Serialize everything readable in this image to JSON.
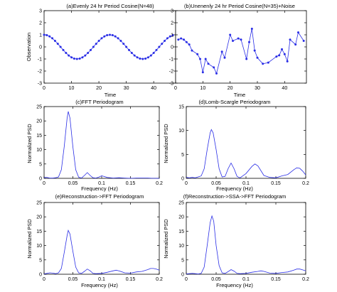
{
  "chart_data": [
    {
      "type": "line",
      "title": "(a)Evenly 24 hr Period Cosine(N=48)",
      "xlabel": "Time",
      "ylabel": "Observation",
      "xlim": [
        0,
        48
      ],
      "ylim": [
        -3,
        3
      ],
      "xticks": [
        "0",
        "10",
        "20",
        "30",
        "40"
      ],
      "yticks": [
        "-3",
        "-2",
        "-1",
        "0",
        "1",
        "2",
        "3"
      ],
      "markers": true,
      "series": [
        {
          "x": [
            0,
            1,
            2,
            3,
            4,
            5,
            6,
            7,
            8,
            9,
            10,
            11,
            12,
            13,
            14,
            15,
            16,
            17,
            18,
            19,
            20,
            21,
            22,
            23,
            24,
            25,
            26,
            27,
            28,
            29,
            30,
            31,
            32,
            33,
            34,
            35,
            36,
            37,
            38,
            39,
            40,
            41,
            42,
            43,
            44,
            45,
            46,
            47
          ],
          "y": [
            1.0,
            0.97,
            0.87,
            0.71,
            0.5,
            0.26,
            0.0,
            -0.26,
            -0.5,
            -0.71,
            -0.87,
            -0.97,
            -1.0,
            -0.97,
            -0.87,
            -0.71,
            -0.5,
            -0.26,
            0.0,
            0.26,
            0.5,
            0.71,
            0.87,
            0.97,
            1.0,
            0.97,
            0.87,
            0.71,
            0.5,
            0.26,
            0.0,
            -0.26,
            -0.5,
            -0.71,
            -0.87,
            -0.97,
            -1.0,
            -0.97,
            -0.87,
            -0.71,
            -0.5,
            -0.26,
            0.0,
            0.26,
            0.5,
            0.71,
            0.87,
            0.97
          ]
        }
      ]
    },
    {
      "type": "line",
      "title": "(b)Unenenly 24 hr Period Cosine(N=35)+Noise",
      "xlabel": "Time",
      "ylabel": "",
      "xlim": [
        0,
        48
      ],
      "ylim": [
        -3,
        3
      ],
      "xticks": [
        "0",
        "10",
        "20",
        "30",
        "40"
      ],
      "yticks": [
        "-3",
        "-2",
        "-1",
        "0",
        "1",
        "2",
        "3"
      ],
      "markers": true,
      "series": [
        {
          "x": [
            1,
            2,
            3,
            4,
            5,
            6,
            8,
            9,
            10,
            11,
            12,
            14,
            15,
            17,
            18,
            20,
            21,
            23,
            24,
            26,
            27,
            28,
            29,
            30,
            32,
            34,
            37,
            38,
            39,
            40,
            41,
            42,
            44,
            45,
            47
          ],
          "y": [
            0.6,
            0.7,
            0.6,
            0.4,
            0.2,
            -0.3,
            -0.6,
            -1.0,
            -2.1,
            -1.0,
            -1.4,
            -1.7,
            -2.2,
            -0.4,
            -0.9,
            1.0,
            0.5,
            0.7,
            0.6,
            -1.0,
            0.4,
            1.5,
            -0.3,
            -0.9,
            -1.4,
            -1.3,
            -0.8,
            -0.7,
            -0.2,
            -0.6,
            -1.2,
            0.6,
            0.2,
            1.2,
            0.5
          ]
        }
      ]
    },
    {
      "type": "line",
      "title": "(c)FFT Periodogram",
      "xlabel": "Frequency (Hz)",
      "ylabel": "Normalized PSD",
      "xlim": [
        0,
        0.2
      ],
      "ylim": [
        0,
        25
      ],
      "xticks": [
        "0",
        "0.05",
        "0.1",
        "0.15",
        "0.2"
      ],
      "yticks": [
        "0",
        "5",
        "10",
        "15",
        "20",
        "25"
      ],
      "markers": false,
      "series": [
        {
          "x": [
            0,
            0.005,
            0.01,
            0.015,
            0.02,
            0.025,
            0.03,
            0.035,
            0.04,
            0.042,
            0.045,
            0.05,
            0.055,
            0.06,
            0.065,
            0.07,
            0.075,
            0.08,
            0.085,
            0.09,
            0.095,
            0.1,
            0.11,
            0.12,
            0.13,
            0.14,
            0.15,
            0.16,
            0.17,
            0.18,
            0.19,
            0.2
          ],
          "y": [
            0.3,
            0.3,
            0.1,
            0.1,
            0.2,
            0.5,
            3.0,
            11.0,
            21.0,
            23.3,
            21.0,
            11.0,
            3.0,
            0.4,
            0.1,
            1.0,
            2.0,
            1.0,
            0.2,
            0.1,
            0.4,
            0.9,
            0.3,
            0.1,
            0.2,
            0.1,
            0.0,
            0.1,
            0.1,
            0.1,
            0.0,
            0.0
          ]
        }
      ]
    },
    {
      "type": "line",
      "title": "(d)Lomb-Scargle Periodogram",
      "xlabel": "Frequency (Hz)",
      "ylabel": "Normalized PSD",
      "xlim": [
        0,
        0.2
      ],
      "ylim": [
        0,
        15
      ],
      "xticks": [
        "0",
        "0.05",
        "0.1",
        "0.15",
        "0.2"
      ],
      "yticks": [
        "0",
        "5",
        "10",
        "15"
      ],
      "markers": false,
      "series": [
        {
          "x": [
            0,
            0.005,
            0.01,
            0.015,
            0.02,
            0.025,
            0.03,
            0.035,
            0.04,
            0.042,
            0.045,
            0.05,
            0.055,
            0.06,
            0.065,
            0.07,
            0.075,
            0.08,
            0.085,
            0.09,
            0.1,
            0.11,
            0.115,
            0.12,
            0.13,
            0.14,
            0.15,
            0.16,
            0.17,
            0.18,
            0.185,
            0.19,
            0.195,
            0.2
          ],
          "y": [
            0.2,
            0.1,
            0.2,
            0.1,
            0.3,
            0.5,
            2.0,
            6.0,
            9.5,
            10.2,
            9.5,
            6.0,
            2.0,
            0.3,
            0.4,
            2.0,
            3.2,
            2.0,
            0.4,
            0.1,
            1.0,
            2.5,
            3.0,
            2.6,
            0.6,
            0.2,
            0.1,
            0.5,
            0.8,
            1.8,
            2.2,
            2.1,
            1.5,
            0.7
          ]
        }
      ]
    },
    {
      "type": "line",
      "title": "(e)Reconstruction->FFT Periodogram",
      "xlabel": "Frequency (Hz)",
      "ylabel": "Normalized PSD",
      "xlim": [
        0,
        0.2
      ],
      "ylim": [
        0,
        25
      ],
      "xticks": [
        "0",
        "0.05",
        "0.1",
        "0.15",
        "0.2"
      ],
      "yticks": [
        "0",
        "5",
        "10",
        "15",
        "20",
        "25"
      ],
      "markers": false,
      "series": [
        {
          "x": [
            0,
            0.005,
            0.01,
            0.015,
            0.02,
            0.025,
            0.03,
            0.035,
            0.04,
            0.042,
            0.045,
            0.05,
            0.055,
            0.06,
            0.065,
            0.07,
            0.075,
            0.08,
            0.085,
            0.09,
            0.1,
            0.11,
            0.12,
            0.125,
            0.13,
            0.14,
            0.15,
            0.16,
            0.17,
            0.18,
            0.185,
            0.19,
            0.195,
            0.2
          ],
          "y": [
            0.1,
            0.3,
            0.5,
            0.4,
            0.2,
            0.5,
            2.0,
            7.5,
            13.5,
            15.3,
            14.0,
            8.0,
            2.5,
            0.5,
            0.3,
            1.0,
            1.8,
            1.2,
            0.3,
            0.2,
            0.3,
            0.7,
            1.2,
            1.4,
            1.2,
            0.5,
            0.4,
            0.8,
            1.0,
            1.6,
            2.0,
            2.0,
            1.8,
            1.4
          ]
        }
      ]
    },
    {
      "type": "line",
      "title": "(f)Reconstruction->SSA->FFT Periodogram",
      "xlabel": "Frequency (Hz)",
      "ylabel": "Normalized PSD",
      "xlim": [
        0,
        0.2
      ],
      "ylim": [
        0,
        25
      ],
      "xticks": [
        "0",
        "0.05",
        "0.1",
        "0.15",
        "0.2"
      ],
      "yticks": [
        "0",
        "5",
        "10",
        "15",
        "20",
        "25"
      ],
      "markers": false,
      "series": [
        {
          "x": [
            0,
            0.005,
            0.01,
            0.015,
            0.02,
            0.025,
            0.03,
            0.035,
            0.04,
            0.043,
            0.046,
            0.05,
            0.055,
            0.06,
            0.065,
            0.07,
            0.075,
            0.08,
            0.085,
            0.09,
            0.1,
            0.11,
            0.12,
            0.125,
            0.13,
            0.14,
            0.15,
            0.16,
            0.17,
            0.18,
            0.185,
            0.19,
            0.195,
            0.2
          ],
          "y": [
            0.1,
            0.2,
            0.3,
            0.2,
            0.1,
            0.3,
            2.5,
            10.0,
            18.0,
            20.3,
            18.5,
            10.0,
            3.0,
            0.5,
            0.3,
            0.9,
            1.6,
            1.1,
            0.3,
            0.2,
            0.3,
            0.7,
            1.0,
            1.2,
            1.0,
            0.4,
            0.3,
            0.6,
            0.8,
            1.4,
            1.8,
            1.8,
            1.5,
            1.2
          ]
        }
      ]
    }
  ]
}
